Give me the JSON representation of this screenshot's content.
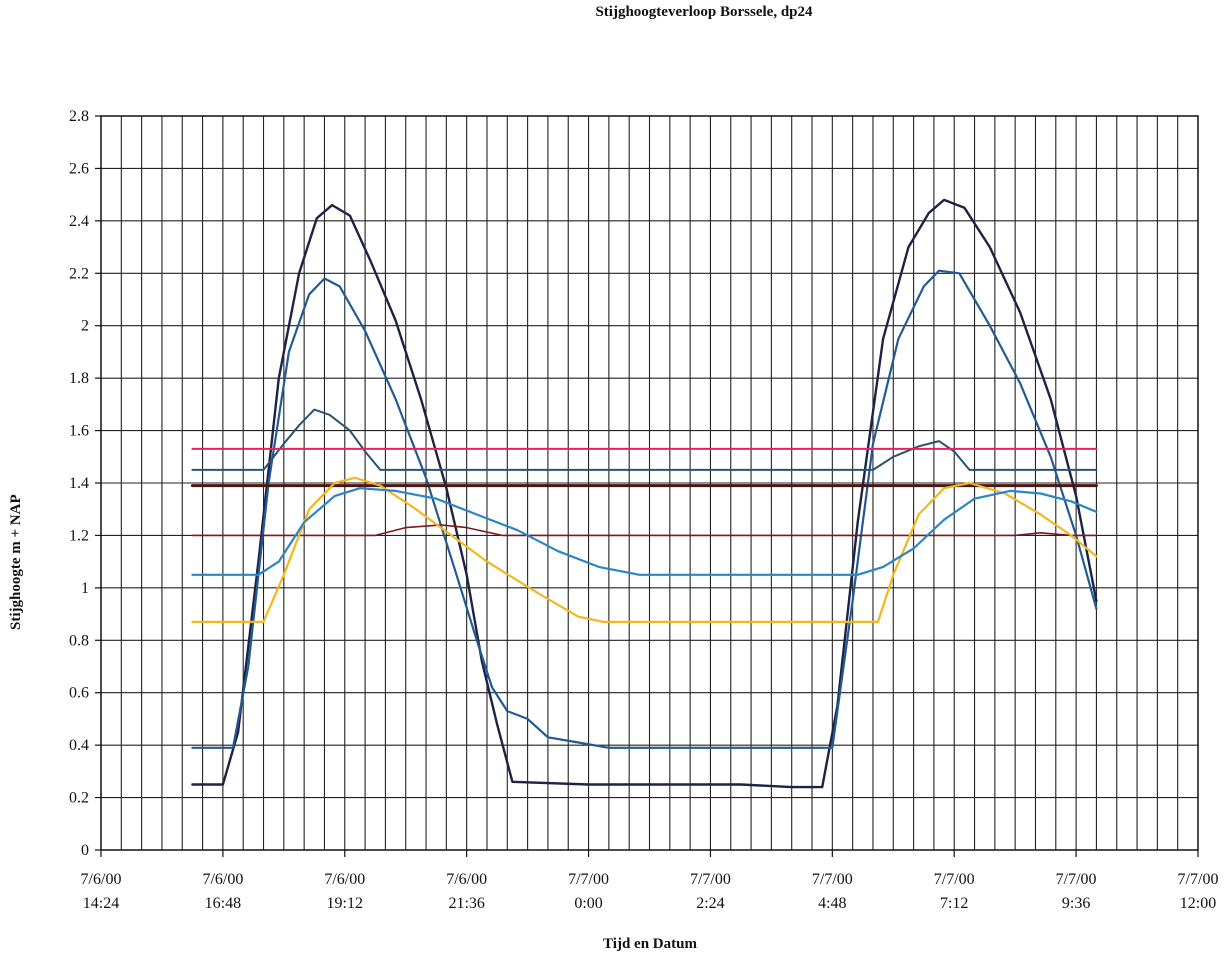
{
  "chart_data": {
    "type": "line",
    "title": "Stijghoogteverloop Borssele, dp24",
    "xlabel": "Tijd en Datum",
    "ylabel": "Stijghoogte m + NAP",
    "ylim": [
      0,
      2.8
    ],
    "yticks": [
      "0",
      "0.2",
      "0.4",
      "0.6",
      "0.8",
      "1",
      "1.2",
      "1.4",
      "1.6",
      "1.8",
      "2",
      "2.2",
      "2.4",
      "2.6",
      "2.8"
    ],
    "xlim_hours": [
      14.4,
      36.0
    ],
    "xticks": [
      {
        "date": "7/6/00",
        "time": "14:24"
      },
      {
        "date": "7/6/00",
        "time": "16:48"
      },
      {
        "date": "7/6/00",
        "time": "19:12"
      },
      {
        "date": "7/6/00",
        "time": "21:36"
      },
      {
        "date": "7/7/00",
        "time": "0:00"
      },
      {
        "date": "7/7/00",
        "time": "2:24"
      },
      {
        "date": "7/7/00",
        "time": "4:48"
      },
      {
        "date": "7/7/00",
        "time": "7:12"
      },
      {
        "date": "7/7/00",
        "time": "9:36"
      },
      {
        "date": "7/7/00",
        "time": "12:00"
      }
    ],
    "grid": true,
    "series": [
      {
        "color": "#1c2346",
        "width": 2.4,
        "points": [
          [
            16.2,
            0.25
          ],
          [
            16.8,
            0.25
          ],
          [
            17.1,
            0.45
          ],
          [
            17.5,
            1.1
          ],
          [
            17.9,
            1.8
          ],
          [
            18.3,
            2.2
          ],
          [
            18.65,
            2.41
          ],
          [
            18.95,
            2.46
          ],
          [
            19.3,
            2.42
          ],
          [
            19.7,
            2.25
          ],
          [
            20.2,
            2.02
          ],
          [
            20.7,
            1.72
          ],
          [
            21.2,
            1.38
          ],
          [
            21.6,
            1.05
          ],
          [
            21.9,
            0.72
          ],
          [
            22.2,
            0.48
          ],
          [
            22.5,
            0.26
          ],
          [
            24.0,
            0.25
          ],
          [
            27.0,
            0.25
          ],
          [
            28.0,
            0.24
          ],
          [
            28.6,
            0.24
          ],
          [
            28.9,
            0.55
          ],
          [
            29.3,
            1.25
          ],
          [
            29.8,
            1.95
          ],
          [
            30.3,
            2.3
          ],
          [
            30.7,
            2.43
          ],
          [
            31.0,
            2.48
          ],
          [
            31.4,
            2.45
          ],
          [
            31.9,
            2.3
          ],
          [
            32.5,
            2.05
          ],
          [
            33.1,
            1.72
          ],
          [
            33.6,
            1.35
          ],
          [
            34.0,
            0.95
          ]
        ]
      },
      {
        "color": "#245a92",
        "width": 2.2,
        "points": [
          [
            16.2,
            0.39
          ],
          [
            17.0,
            0.39
          ],
          [
            17.3,
            0.7
          ],
          [
            17.7,
            1.4
          ],
          [
            18.1,
            1.9
          ],
          [
            18.5,
            2.12
          ],
          [
            18.8,
            2.18
          ],
          [
            19.1,
            2.15
          ],
          [
            19.6,
            1.98
          ],
          [
            20.2,
            1.72
          ],
          [
            20.8,
            1.42
          ],
          [
            21.4,
            1.05
          ],
          [
            21.8,
            0.8
          ],
          [
            22.1,
            0.62
          ],
          [
            22.4,
            0.53
          ],
          [
            22.8,
            0.5
          ],
          [
            23.2,
            0.43
          ],
          [
            23.8,
            0.41
          ],
          [
            24.4,
            0.39
          ],
          [
            26.0,
            0.39
          ],
          [
            28.0,
            0.39
          ],
          [
            28.8,
            0.39
          ],
          [
            29.2,
            0.95
          ],
          [
            29.6,
            1.55
          ],
          [
            30.1,
            1.95
          ],
          [
            30.6,
            2.15
          ],
          [
            30.9,
            2.21
          ],
          [
            31.3,
            2.2
          ],
          [
            31.9,
            2.0
          ],
          [
            32.5,
            1.78
          ],
          [
            33.1,
            1.5
          ],
          [
            33.6,
            1.2
          ],
          [
            34.0,
            0.92
          ]
        ]
      },
      {
        "color": "#2a5273",
        "width": 2,
        "points": [
          [
            16.2,
            1.45
          ],
          [
            17.6,
            1.45
          ],
          [
            18.0,
            1.55
          ],
          [
            18.3,
            1.62
          ],
          [
            18.6,
            1.68
          ],
          [
            18.9,
            1.66
          ],
          [
            19.3,
            1.6
          ],
          [
            19.6,
            1.52
          ],
          [
            19.9,
            1.45
          ],
          [
            29.6,
            1.45
          ],
          [
            30.0,
            1.5
          ],
          [
            30.5,
            1.54
          ],
          [
            30.9,
            1.56
          ],
          [
            31.2,
            1.52
          ],
          [
            31.5,
            1.45
          ],
          [
            34.0,
            1.45
          ]
        ]
      },
      {
        "color": "#e6235e",
        "width": 2,
        "points": [
          [
            16.2,
            1.53
          ],
          [
            34.0,
            1.53
          ]
        ]
      },
      {
        "color": "#4a1612",
        "width": 3,
        "points": [
          [
            16.2,
            1.39
          ],
          [
            34.0,
            1.39
          ]
        ]
      },
      {
        "color": "#7a1a1f",
        "width": 1.6,
        "points": [
          [
            16.2,
            1.2
          ],
          [
            19.8,
            1.2
          ],
          [
            20.4,
            1.23
          ],
          [
            21.1,
            1.24
          ],
          [
            21.6,
            1.23
          ],
          [
            22.3,
            1.2
          ],
          [
            32.4,
            1.2
          ],
          [
            32.9,
            1.21
          ],
          [
            33.5,
            1.2
          ],
          [
            34.0,
            1.2
          ]
        ]
      },
      {
        "color": "#f2b71c",
        "width": 2.2,
        "points": [
          [
            16.2,
            0.87
          ],
          [
            17.6,
            0.87
          ],
          [
            18.0,
            1.05
          ],
          [
            18.5,
            1.3
          ],
          [
            19.0,
            1.4
          ],
          [
            19.4,
            1.42
          ],
          [
            19.9,
            1.39
          ],
          [
            20.6,
            1.3
          ],
          [
            21.3,
            1.2
          ],
          [
            22.0,
            1.1
          ],
          [
            23.0,
            0.98
          ],
          [
            23.8,
            0.89
          ],
          [
            24.3,
            0.87
          ],
          [
            26.0,
            0.87
          ],
          [
            28.0,
            0.87
          ],
          [
            29.7,
            0.87
          ],
          [
            30.0,
            1.05
          ],
          [
            30.5,
            1.28
          ],
          [
            31.0,
            1.38
          ],
          [
            31.5,
            1.4
          ],
          [
            32.2,
            1.36
          ],
          [
            32.9,
            1.28
          ],
          [
            33.5,
            1.2
          ],
          [
            34.0,
            1.12
          ]
        ]
      },
      {
        "color": "#2a86c6",
        "width": 2.2,
        "points": [
          [
            16.2,
            1.05
          ],
          [
            17.5,
            1.05
          ],
          [
            17.9,
            1.1
          ],
          [
            18.4,
            1.25
          ],
          [
            19.0,
            1.35
          ],
          [
            19.5,
            1.38
          ],
          [
            20.2,
            1.37
          ],
          [
            21.0,
            1.34
          ],
          [
            21.8,
            1.28
          ],
          [
            22.6,
            1.22
          ],
          [
            23.4,
            1.14
          ],
          [
            24.2,
            1.08
          ],
          [
            25.0,
            1.05
          ],
          [
            27.0,
            1.05
          ],
          [
            29.3,
            1.05
          ],
          [
            29.8,
            1.08
          ],
          [
            30.4,
            1.15
          ],
          [
            31.0,
            1.26
          ],
          [
            31.6,
            1.34
          ],
          [
            32.3,
            1.37
          ],
          [
            32.9,
            1.36
          ],
          [
            33.5,
            1.33
          ],
          [
            34.0,
            1.29
          ]
        ]
      }
    ]
  }
}
